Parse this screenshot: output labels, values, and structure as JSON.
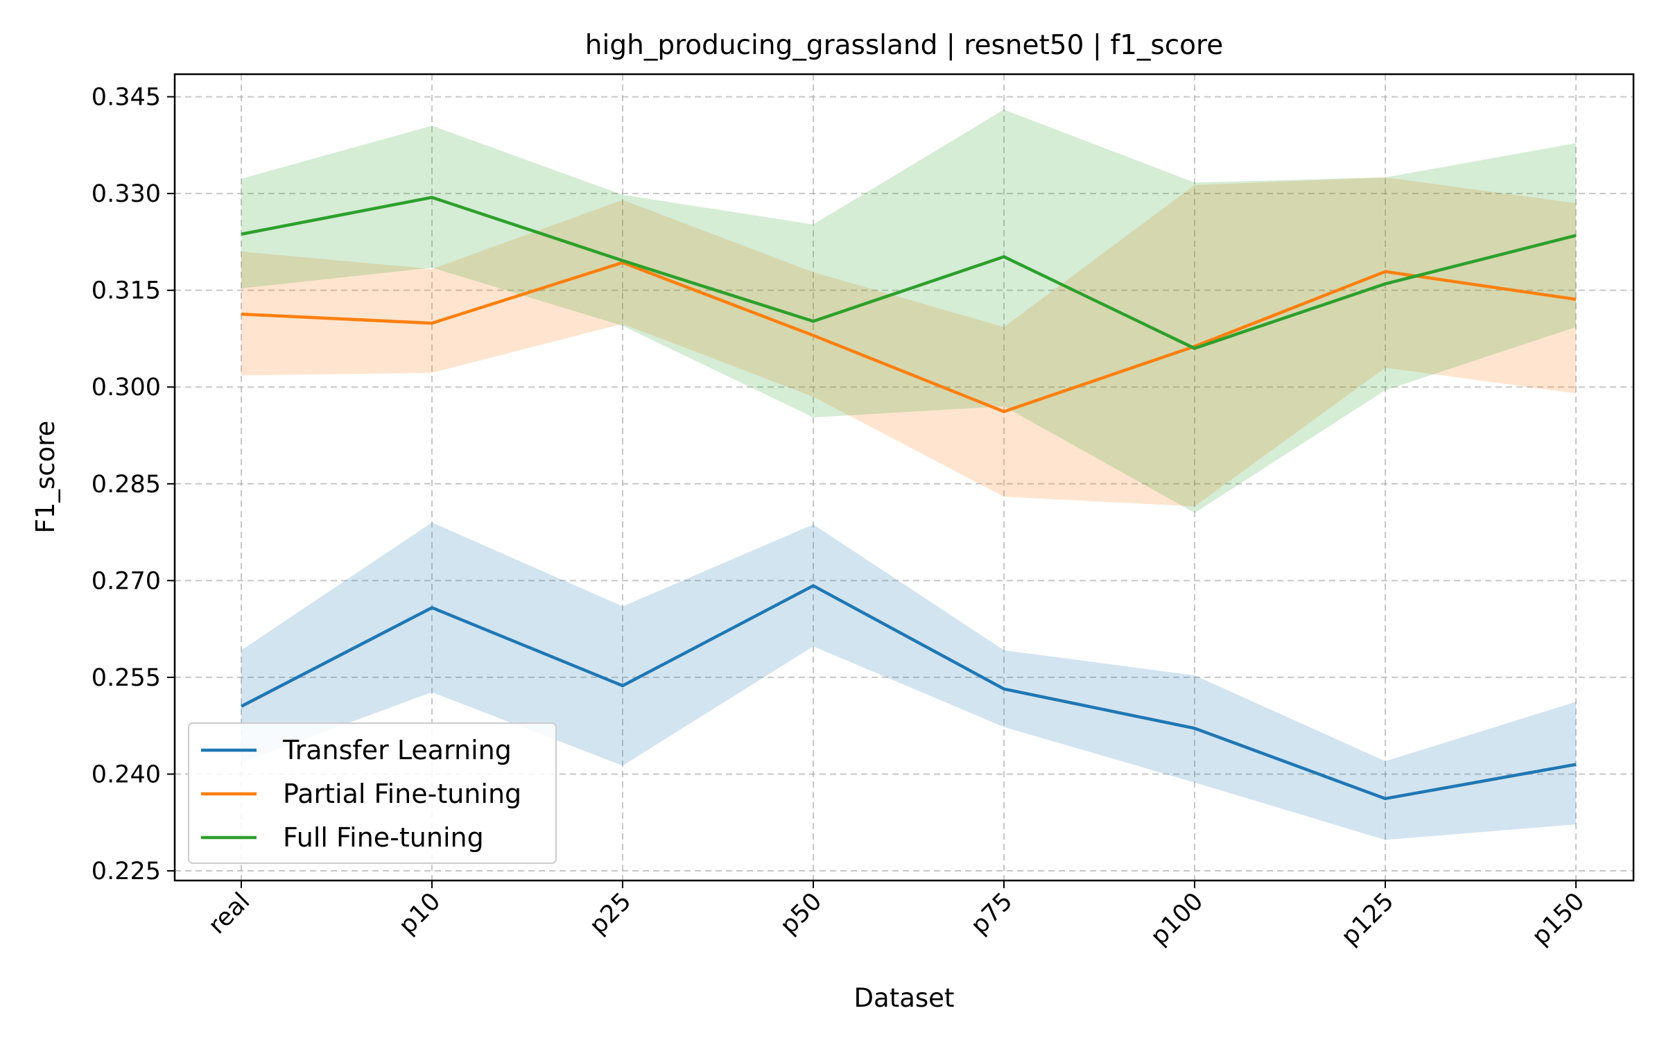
{
  "chart_data": {
    "type": "line",
    "title": "high_producing_grassland | resnet50 | f1_score",
    "xlabel": "Dataset",
    "ylabel": "F1_score",
    "categories": [
      "real",
      "p10",
      "p25",
      "p50",
      "p75",
      "p100",
      "p125",
      "p150"
    ],
    "ylim": [
      0.2235,
      0.3485
    ],
    "yticks": [
      "0.225",
      "0.240",
      "0.255",
      "0.270",
      "0.285",
      "0.300",
      "0.315",
      "0.330",
      "0.345"
    ],
    "grid": true,
    "legend_position": "lower-left",
    "series": [
      {
        "name": "Transfer Learning",
        "color": "#1f77b4",
        "values": [
          0.2505,
          0.2658,
          0.2537,
          0.2692,
          0.2532,
          0.2471,
          0.2362,
          0.2415
        ],
        "lower": [
          0.2418,
          0.2527,
          0.2413,
          0.2598,
          0.2473,
          0.2387,
          0.2298,
          0.2322
        ],
        "upper": [
          0.2592,
          0.279,
          0.266,
          0.2787,
          0.2592,
          0.2553,
          0.242,
          0.2512
        ]
      },
      {
        "name": "Partial Fine-tuning",
        "color": "#ff7f0e",
        "values": [
          0.3113,
          0.3099,
          0.3193,
          0.308,
          0.2962,
          0.3063,
          0.3179,
          0.3136
        ],
        "lower": [
          0.3018,
          0.3022,
          0.3098,
          0.2985,
          0.283,
          0.2815,
          0.303,
          0.299
        ],
        "upper": [
          0.321,
          0.3183,
          0.329,
          0.3178,
          0.3093,
          0.3313,
          0.3325,
          0.3285
        ]
      },
      {
        "name": "Full Fine-tuning",
        "color": "#2ca02c",
        "values": [
          0.3237,
          0.3294,
          0.3196,
          0.3102,
          0.3202,
          0.306,
          0.316,
          0.3235
        ],
        "lower": [
          0.3153,
          0.3185,
          0.3095,
          0.2953,
          0.297,
          0.2805,
          0.2995,
          0.3093
        ],
        "upper": [
          0.3323,
          0.3405,
          0.3298,
          0.3252,
          0.343,
          0.3317,
          0.3325,
          0.3378
        ]
      }
    ]
  }
}
